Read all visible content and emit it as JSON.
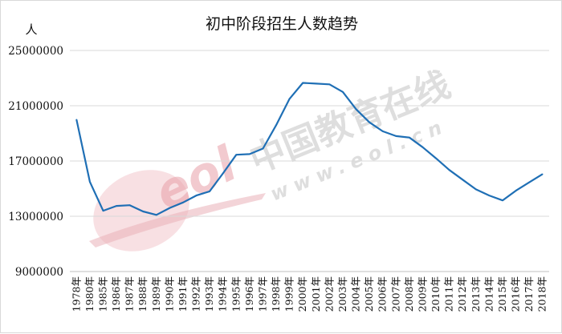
{
  "chart_data": {
    "type": "line",
    "title": "初中阶段招生人数趋势",
    "ylabel": "人",
    "xlabel": "",
    "ylim": [
      9000000,
      25000000
    ],
    "yticks": [
      9000000,
      13000000,
      17000000,
      21000000,
      25000000
    ],
    "ytick_labels": [
      "9000000",
      "13000000",
      "17000000",
      "21000000",
      "25000000"
    ],
    "categories": [
      "1978年",
      "1980年",
      "1985年",
      "1986年",
      "1987年",
      "1988年",
      "1989年",
      "1990年",
      "1991年",
      "1992年",
      "1993年",
      "1994年",
      "1995年",
      "1996年",
      "1997年",
      "1998年",
      "1999年",
      "2000年",
      "2001年",
      "2002年",
      "2003年",
      "2004年",
      "2005年",
      "2006年",
      "2007年",
      "2008年",
      "2009年",
      "2010年",
      "2011年",
      "2012年",
      "2013年",
      "2014年",
      "2015年",
      "2016年",
      "2017年",
      "2018年"
    ],
    "series": [
      {
        "values": [
          20000000,
          15500000,
          13400000,
          13750000,
          13800000,
          13350000,
          13100000,
          13600000,
          14000000,
          14500000,
          14800000,
          16100000,
          17450000,
          17500000,
          17900000,
          19600000,
          21500000,
          22650000,
          22600000,
          22550000,
          22000000,
          20750000,
          19800000,
          19150000,
          18800000,
          18700000,
          18000000,
          17200000,
          16350000,
          15650000,
          14950000,
          14500000,
          14150000,
          14850000,
          15450000,
          16050000
        ],
        "color": "#1f6fb5"
      }
    ],
    "grid": true,
    "legend": "none"
  },
  "watermark": {
    "logo_text": "eol",
    "cn_text": "中国教育在线",
    "url_text": "www.eol.cn",
    "logo_color": "#e8a0a8"
  }
}
